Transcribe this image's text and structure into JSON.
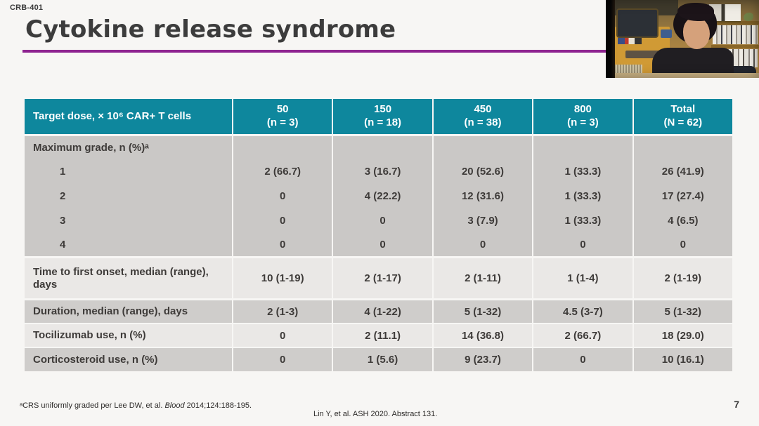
{
  "slide": {
    "study_label": "CRB-401",
    "title": "Cytokine release syndrome",
    "page_number": "7",
    "citation": "Lin Y, et al. ASH 2020. Abstract 131.",
    "footnote": {
      "prefix": "ᵃCRS uniformly graded per Lee DW, et al. ",
      "journal": "Blood",
      "suffix": " 2014;124:188-195."
    },
    "colors": {
      "header_teal": "#0e879d",
      "accent_purple": "#8e2490",
      "band_dark": "#cac8c6",
      "band_light": "#eae8e6"
    },
    "table": {
      "header": {
        "label": "Target dose, × 10⁶ CAR+ T cells",
        "columns": [
          {
            "dose": "50",
            "n": "(n = 3)"
          },
          {
            "dose": "150",
            "n": "(n = 18)"
          },
          {
            "dose": "450",
            "n": "(n = 38)"
          },
          {
            "dose": "800",
            "n": "(n = 3)"
          },
          {
            "dose": "Total",
            "n": "(N = 62)"
          }
        ]
      },
      "rows": [
        {
          "label": "Maximum grade, n (%)ᵃ",
          "cells": [
            "",
            "",
            "",
            "",
            ""
          ]
        },
        {
          "label": "1",
          "cells": [
            "2 (66.7)",
            "3 (16.7)",
            "20 (52.6)",
            "1 (33.3)",
            "26 (41.9)"
          ]
        },
        {
          "label": "2",
          "cells": [
            "0",
            "4 (22.2)",
            "12 (31.6)",
            "1 (33.3)",
            "17 (27.4)"
          ]
        },
        {
          "label": "3",
          "cells": [
            "0",
            "0",
            "3 (7.9)",
            "1 (33.3)",
            "4 (6.5)"
          ]
        },
        {
          "label": "4",
          "cells": [
            "0",
            "0",
            "0",
            "0",
            "0"
          ]
        },
        {
          "label": "Time to first onset, median (range), days",
          "cells": [
            "10 (1-19)",
            "2 (1-17)",
            "2 (1-11)",
            "1 (1-4)",
            "2 (1-19)"
          ]
        },
        {
          "label": "Duration, median (range), days",
          "cells": [
            "2 (1-3)",
            "4 (1-22)",
            "5 (1-32)",
            "4.5 (3-7)",
            "5 (1-32)"
          ]
        },
        {
          "label": "Tocilizumab use, n (%)",
          "cells": [
            "0",
            "2 (11.1)",
            "14 (36.8)",
            "2 (66.7)",
            "18 (29.0)"
          ]
        },
        {
          "label": "Corticosteroid use, n (%)",
          "cells": [
            "0",
            "1 (5.6)",
            "9 (23.7)",
            "0",
            "10 (16.1)"
          ]
        }
      ]
    }
  }
}
